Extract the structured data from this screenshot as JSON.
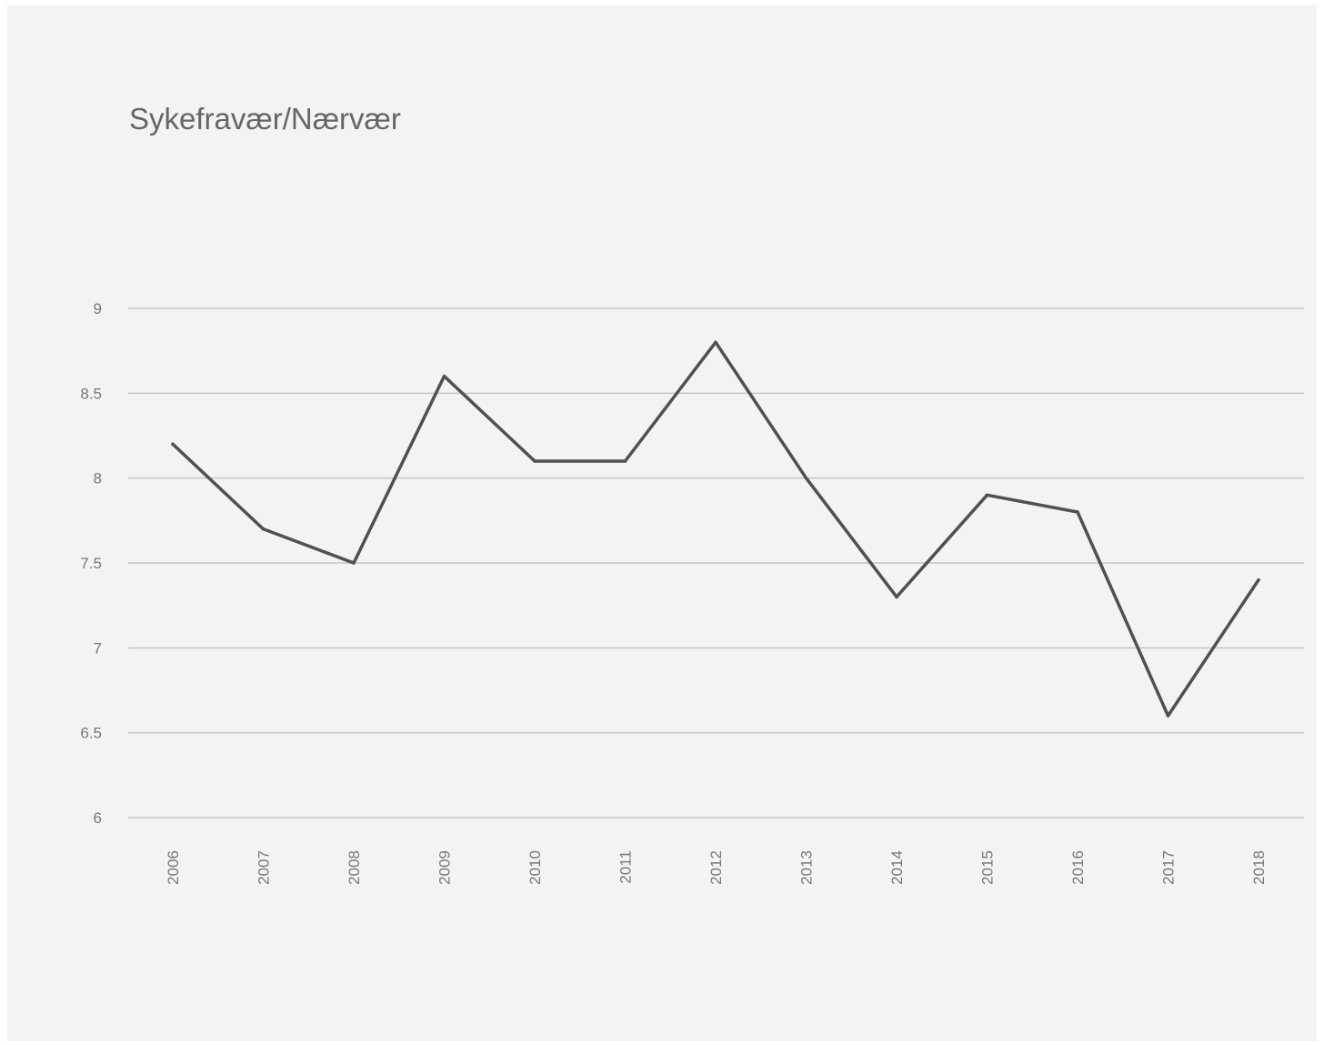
{
  "chart_data": {
    "type": "line",
    "title": "Sykefravær/Nærvær",
    "xlabel": "",
    "ylabel": "",
    "categories": [
      "2006",
      "2007",
      "2008",
      "2009",
      "2010",
      "2011",
      "2012",
      "2013",
      "2014",
      "2015",
      "2016",
      "2017",
      "2018"
    ],
    "series": [
      {
        "values": [
          8.2,
          7.7,
          7.5,
          8.6,
          8.1,
          8.1,
          8.8,
          8.0,
          7.3,
          7.9,
          7.8,
          6.6,
          7.4
        ]
      }
    ],
    "ylim": [
      6,
      9
    ],
    "yticks": [
      "6",
      "6.5",
      "7",
      "7.5",
      "8",
      "8.5",
      "9"
    ],
    "grid": true,
    "legend": "none",
    "colors": {
      "line": "#505050",
      "grid": "#c4c4c4",
      "background": "#f3f3f3",
      "text": "#777777"
    }
  }
}
